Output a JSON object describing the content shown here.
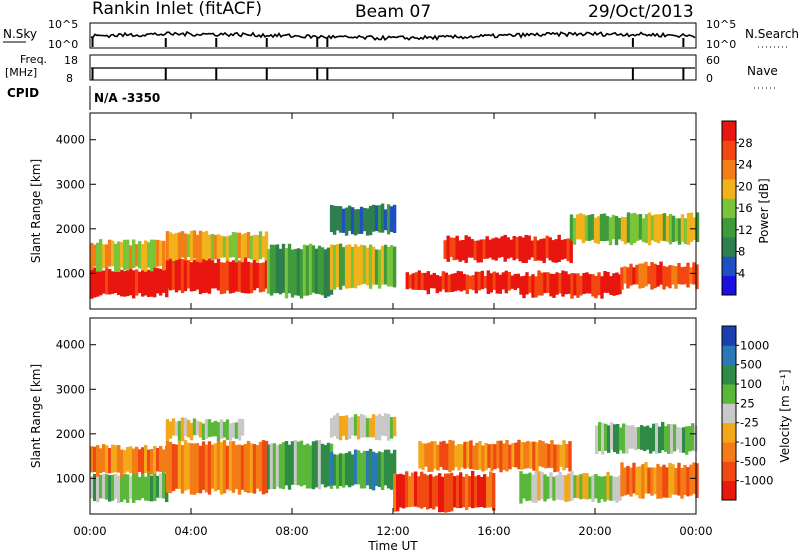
{
  "header": {
    "station": "Rankin Inlet (fitACF)",
    "beam": "Beam 07",
    "date": "29/Oct/2013"
  },
  "noise_panel": {
    "left_label": "N.Sky",
    "right_label": "N.Search",
    "left_ticks": [
      "10^5",
      "10^0"
    ],
    "right_ticks": [
      "10^5",
      "10^0"
    ],
    "right_legend_line": "dotted"
  },
  "freq_panel": {
    "left_label_1": "Freq.",
    "left_label_2": "[MHz]",
    "left_ticks": [
      "18",
      "8"
    ],
    "right_label": "Nave",
    "right_ticks": [
      "60",
      "0"
    ],
    "right_legend_line": "dotted"
  },
  "cpid": {
    "label": "CPID",
    "value": "N/A -3350"
  },
  "colors": {
    "power_scale": [
      "#1a10e0",
      "#1f4fc2",
      "#2e7e4e",
      "#3e9a3a",
      "#7ac43a",
      "#f1b21b",
      "#f57d16",
      "#f34610",
      "#e8160e"
    ],
    "velocity_scale": [
      "#1c3fb0",
      "#2a78b8",
      "#2f8a45",
      "#5ab73a",
      "#c9c9c9",
      "#f2a818",
      "#f47c16",
      "#f04a12",
      "#e8180e"
    ]
  },
  "chart_data": [
    {
      "type": "heatmap",
      "panel": "power",
      "ylabel": "Slant Range [km]",
      "ylim": [
        200,
        4600
      ],
      "y_ticks": [
        1000,
        2000,
        3000,
        4000
      ],
      "xlabel": "Time UT",
      "x_ticks": [
        "00:00",
        "04:00",
        "08:00",
        "12:00",
        "16:00",
        "20:00",
        "00:00"
      ],
      "xlim_hours": [
        0,
        24
      ],
      "colorbar": {
        "label": "Power [dB]",
        "ticks": [
          "4",
          "8",
          "12",
          "16",
          "20",
          "24",
          "28"
        ]
      },
      "bands": [
        {
          "t0": 0.0,
          "t1": 3.0,
          "r0": 500,
          "r1": 1100,
          "level": 8
        },
        {
          "t0": 0.0,
          "t1": 3.0,
          "r0": 1100,
          "r1": 1700,
          "level": 5
        },
        {
          "t0": 3.0,
          "t1": 7.0,
          "r0": 600,
          "r1": 1300,
          "level": 8
        },
        {
          "t0": 3.0,
          "t1": 7.0,
          "r0": 1300,
          "r1": 1900,
          "level": 5
        },
        {
          "t0": 7.0,
          "t1": 9.5,
          "r0": 500,
          "r1": 1600,
          "level": 3
        },
        {
          "t0": 9.5,
          "t1": 12.0,
          "r0": 700,
          "r1": 1600,
          "level": 4
        },
        {
          "t0": 9.5,
          "t1": 12.0,
          "r0": 1900,
          "r1": 2500,
          "level": 2
        },
        {
          "t0": 12.5,
          "t1": 17.0,
          "r0": 600,
          "r1": 1000,
          "level": 8
        },
        {
          "t0": 14.0,
          "t1": 19.0,
          "r0": 1300,
          "r1": 1800,
          "level": 8
        },
        {
          "t0": 17.0,
          "t1": 21.0,
          "r0": 500,
          "r1": 1000,
          "level": 8
        },
        {
          "t0": 21.0,
          "t1": 24.0,
          "r0": 700,
          "r1": 1200,
          "level": 7
        },
        {
          "t0": 19.0,
          "t1": 24.0,
          "r0": 1700,
          "r1": 2300,
          "level": 4
        }
      ]
    },
    {
      "type": "heatmap",
      "panel": "velocity",
      "ylabel": "Slant Range [km]",
      "ylim": [
        200,
        4600
      ],
      "y_ticks": [
        1000,
        2000,
        3000,
        4000
      ],
      "xlabel": "Time UT",
      "x_ticks": [
        "00:00",
        "04:00",
        "08:00",
        "12:00",
        "16:00",
        "20:00",
        "00:00"
      ],
      "xlim_hours": [
        0,
        24
      ],
      "colorbar": {
        "label": "Velocity [m s⁻¹]",
        "ticks": [
          "1000",
          "500",
          "100",
          "25",
          "-25",
          "-100",
          "-500",
          "-1000"
        ]
      },
      "bands": [
        {
          "t0": 0.0,
          "t1": 3.0,
          "r0": 500,
          "r1": 1100,
          "level": 3
        },
        {
          "t0": 0.0,
          "t1": 3.0,
          "r0": 1100,
          "r1": 1700,
          "level": 6
        },
        {
          "t0": 3.0,
          "t1": 7.0,
          "r0": 700,
          "r1": 1800,
          "level": 6
        },
        {
          "t0": 3.0,
          "t1": 6.0,
          "r0": 1900,
          "r1": 2300,
          "level": 4
        },
        {
          "t0": 7.0,
          "t1": 9.5,
          "r0": 800,
          "r1": 1800,
          "level": 3
        },
        {
          "t0": 9.5,
          "t1": 12.0,
          "r0": 800,
          "r1": 1600,
          "level": 2
        },
        {
          "t0": 9.5,
          "t1": 12.0,
          "r0": 1900,
          "r1": 2400,
          "level": 4
        },
        {
          "t0": 12.0,
          "t1": 16.0,
          "r0": 300,
          "r1": 1100,
          "level": 7
        },
        {
          "t0": 13.0,
          "t1": 19.0,
          "r0": 1200,
          "r1": 1800,
          "level": 6
        },
        {
          "t0": 17.0,
          "t1": 21.0,
          "r0": 500,
          "r1": 1100,
          "level": 4
        },
        {
          "t0": 21.0,
          "t1": 24.0,
          "r0": 600,
          "r1": 1300,
          "level": 6
        },
        {
          "t0": 20.0,
          "t1": 24.0,
          "r0": 1600,
          "r1": 2200,
          "level": 3
        }
      ]
    }
  ]
}
